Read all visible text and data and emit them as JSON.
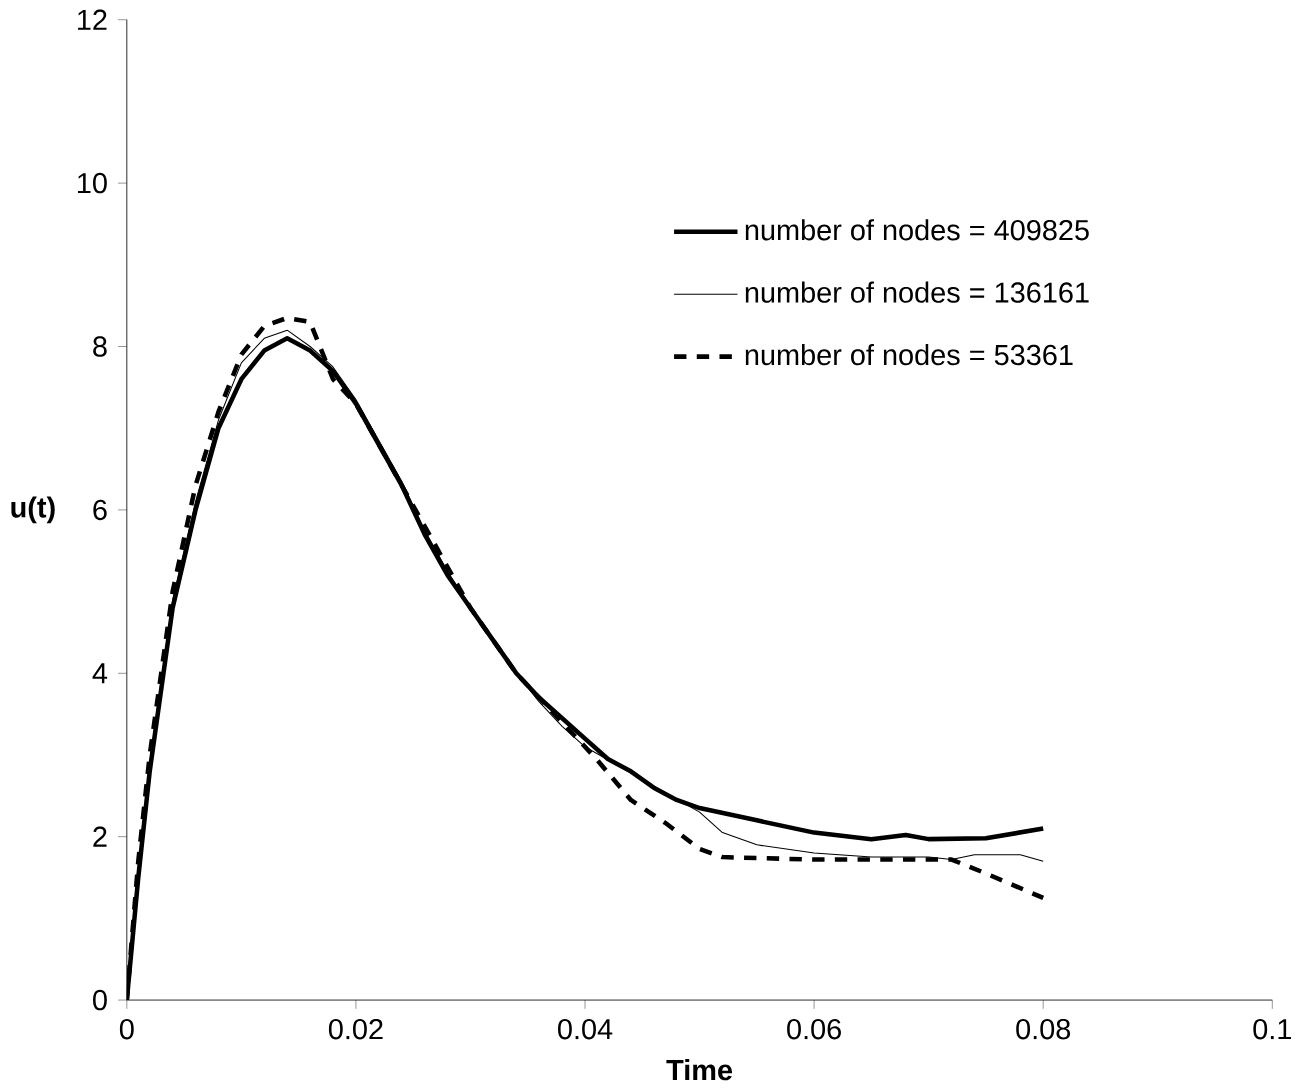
{
  "chart_data": {
    "type": "line",
    "xlabel": "Time",
    "ylabel": "u(t)",
    "xlim": [
      0,
      0.1
    ],
    "xticks": [
      0,
      0.02,
      0.04,
      0.06,
      0.08,
      0.1
    ],
    "ylim": [
      0,
      12
    ],
    "yticks": [
      0,
      2,
      4,
      6,
      8,
      10,
      12
    ],
    "grid": false,
    "legend": "right",
    "marker": "none",
    "series": [
      {
        "name": "number of nodes = 409825",
        "color": "#000000",
        "line_style": "solid",
        "x": [
          0,
          0.001,
          0.002,
          0.004,
          0.006,
          0.008,
          0.01,
          0.012,
          0.014,
          0.016,
          0.018,
          0.02,
          0.022,
          0.024,
          0.026,
          0.028,
          0.03,
          0.032,
          0.034,
          0.036,
          0.038,
          0.04,
          0.042,
          0.044,
          0.046,
          0.048,
          0.05,
          0.055,
          0.06,
          0.065,
          0.068,
          0.07,
          0.075,
          0.08
        ],
        "values": [
          0,
          1.5,
          2.8,
          4.8,
          6.0,
          7.0,
          7.6,
          7.95,
          8.1,
          7.95,
          7.7,
          7.3,
          6.8,
          6.3,
          5.7,
          5.2,
          4.8,
          4.4,
          4.0,
          3.7,
          3.45,
          3.2,
          2.95,
          2.8,
          2.6,
          2.45,
          2.35,
          2.2,
          2.05,
          1.97,
          2.02,
          1.97,
          1.98,
          2.1
        ]
      },
      {
        "name": "number of nodes = 136161",
        "color": "#000000",
        "line_style": "solid",
        "x": [
          0,
          0.001,
          0.002,
          0.004,
          0.006,
          0.008,
          0.01,
          0.012,
          0.014,
          0.016,
          0.018,
          0.02,
          0.022,
          0.024,
          0.026,
          0.028,
          0.03,
          0.032,
          0.034,
          0.036,
          0.038,
          0.04,
          0.045,
          0.05,
          0.052,
          0.055,
          0.06,
          0.065,
          0.07,
          0.072,
          0.074,
          0.078,
          0.08
        ],
        "values": [
          0,
          1.6,
          2.9,
          4.9,
          6.1,
          7.1,
          7.8,
          8.1,
          8.2,
          8.0,
          7.75,
          7.35,
          6.85,
          6.35,
          5.75,
          5.25,
          4.8,
          4.4,
          4.0,
          3.65,
          3.35,
          3.1,
          2.7,
          2.3,
          2.05,
          1.9,
          1.8,
          1.75,
          1.75,
          1.72,
          1.78,
          1.78,
          1.7
        ]
      },
      {
        "name": "number of nodes = 53361",
        "color": "#000000",
        "line_style": "dashed",
        "x": [
          0,
          0.001,
          0.002,
          0.004,
          0.006,
          0.008,
          0.01,
          0.012,
          0.014,
          0.016,
          0.018,
          0.02,
          0.022,
          0.024,
          0.026,
          0.028,
          0.03,
          0.032,
          0.034,
          0.036,
          0.038,
          0.041,
          0.044,
          0.047,
          0.05,
          0.052,
          0.06,
          0.07,
          0.072,
          0.075,
          0.08
        ],
        "values": [
          0,
          1.7,
          3.0,
          5.0,
          6.3,
          7.2,
          7.9,
          8.25,
          8.35,
          8.3,
          7.6,
          7.3,
          6.8,
          6.3,
          5.8,
          5.3,
          4.8,
          4.4,
          4.0,
          3.7,
          3.4,
          2.95,
          2.45,
          2.17,
          1.85,
          1.75,
          1.72,
          1.72,
          1.72,
          1.55,
          1.25
        ]
      }
    ]
  }
}
